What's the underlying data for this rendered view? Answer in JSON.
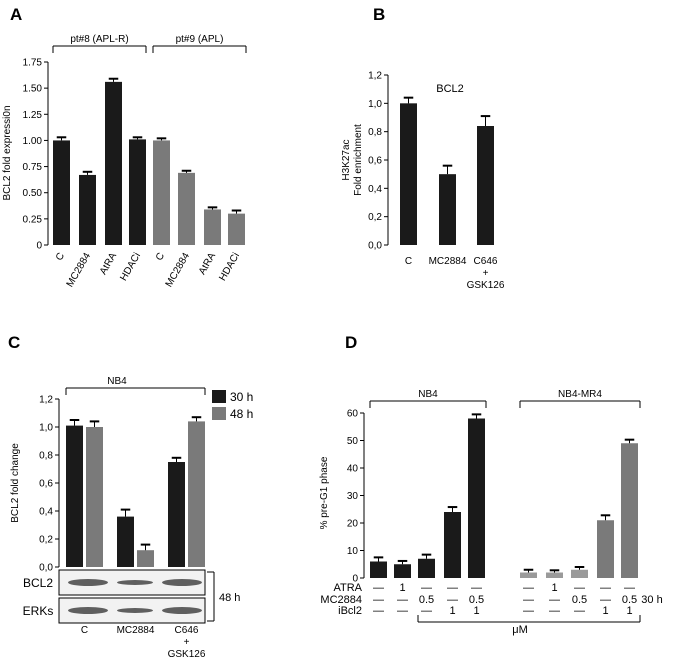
{
  "panels": {
    "A": {
      "letter": "A"
    },
    "B": {
      "letter": "B"
    },
    "C": {
      "letter": "C"
    },
    "D": {
      "letter": "D"
    }
  },
  "colors": {
    "dark": "#1a1a1a",
    "gray": "#7a7a7a",
    "light": "#9a9a9a"
  },
  "chart_data": [
    {
      "id": "A",
      "type": "bar",
      "ylabel": "BCL2 fold expressi0n",
      "ylim": [
        0,
        1.75
      ],
      "yticks": [
        "0",
        "0.25",
        "0.50",
        "0.75",
        "1.00",
        "1.25",
        "1.50",
        "1.75"
      ],
      "categories": [
        "C",
        "MC2884",
        "AtRA",
        "HDACi",
        "C",
        "MC2884",
        "AtRA",
        "HDACi"
      ],
      "values": [
        1.0,
        0.67,
        1.56,
        1.01,
        1.0,
        0.69,
        0.34,
        0.3
      ],
      "errors": [
        0.03,
        0.03,
        0.03,
        0.02,
        0.02,
        0.02,
        0.02,
        0.03
      ],
      "bar_colors": [
        "dark",
        "dark",
        "dark",
        "dark",
        "gray",
        "gray",
        "gray",
        "gray"
      ],
      "groups": [
        {
          "label": "pt#8 (APL-R)"
        },
        {
          "label": "pt#9 (APL)"
        }
      ]
    },
    {
      "id": "B",
      "type": "bar",
      "title": "BCL2",
      "ylabel_line1": "H3K27ac",
      "ylabel_line2": "Fold enrichment",
      "ylim": [
        0,
        1.2
      ],
      "yticks": [
        "0,0",
        "0,2",
        "0,4",
        "0,6",
        "0,8",
        "1,0",
        "1,2"
      ],
      "categories": [
        "C",
        "MC2884",
        "C646"
      ],
      "category_sub": [
        "",
        "",
        "+"
      ],
      "category_sub2": [
        "",
        "",
        "GSK126"
      ],
      "values": [
        1.0,
        0.5,
        0.84
      ],
      "errors": [
        0.04,
        0.06,
        0.07
      ]
    },
    {
      "id": "C",
      "type": "bar",
      "group_label": "NB4",
      "ylabel": "BCL2 fold change",
      "ylim": [
        0,
        1.2
      ],
      "yticks": [
        "0,0",
        "0,2",
        "0,4",
        "0,6",
        "0,8",
        "1,0",
        "1,2"
      ],
      "categories": [
        "C",
        "MC2884",
        "C646"
      ],
      "category_sub": [
        "",
        "",
        "+"
      ],
      "category_sub2": [
        "",
        "",
        "GSK126"
      ],
      "series": [
        {
          "name": "30 h",
          "color": "dark",
          "values": [
            1.01,
            0.36,
            0.75
          ],
          "errors": [
            0.04,
            0.05,
            0.03
          ]
        },
        {
          "name": "48 h",
          "color": "gray",
          "values": [
            1.0,
            0.12,
            1.04
          ],
          "errors": [
            0.04,
            0.04,
            0.03
          ]
        }
      ],
      "blot_labels": [
        "BCL2",
        "ERKs"
      ],
      "blot_time": "48 h"
    },
    {
      "id": "D",
      "type": "bar",
      "ylabel": "% pre-G1 phase",
      "ylim": [
        0,
        60
      ],
      "yticks": [
        "0",
        "10",
        "20",
        "30",
        "40",
        "50",
        "60"
      ],
      "values": [
        6,
        5,
        7,
        24,
        58,
        2,
        2,
        3,
        21,
        49
      ],
      "errors": [
        1.5,
        1.2,
        1.5,
        1.8,
        1.5,
        1.0,
        0.8,
        1.0,
        1.8,
        1.3
      ],
      "bar_colors": [
        "dark",
        "dark",
        "dark",
        "dark",
        "dark",
        "light",
        "light",
        "light",
        "gray",
        "gray"
      ],
      "groups": [
        {
          "label": "NB4"
        },
        {
          "label": "NB4-MR4"
        }
      ],
      "treatments": [
        {
          "label": "ATRA",
          "cells": [
            "—",
            "1",
            "—",
            "—",
            "—",
            "—",
            "1",
            "—",
            "—",
            "—"
          ]
        },
        {
          "label": "MC2884",
          "cells": [
            "—",
            "—",
            "0.5",
            "—",
            "0.5",
            "—",
            "—",
            "0.5",
            "—",
            "0.5"
          ]
        },
        {
          "label": "iBcl2",
          "cells": [
            "—",
            "—",
            "—",
            "1",
            "1",
            "—",
            "—",
            "—",
            "1",
            "1"
          ]
        }
      ],
      "time_label": "30 h",
      "unit_label": "μM"
    }
  ]
}
